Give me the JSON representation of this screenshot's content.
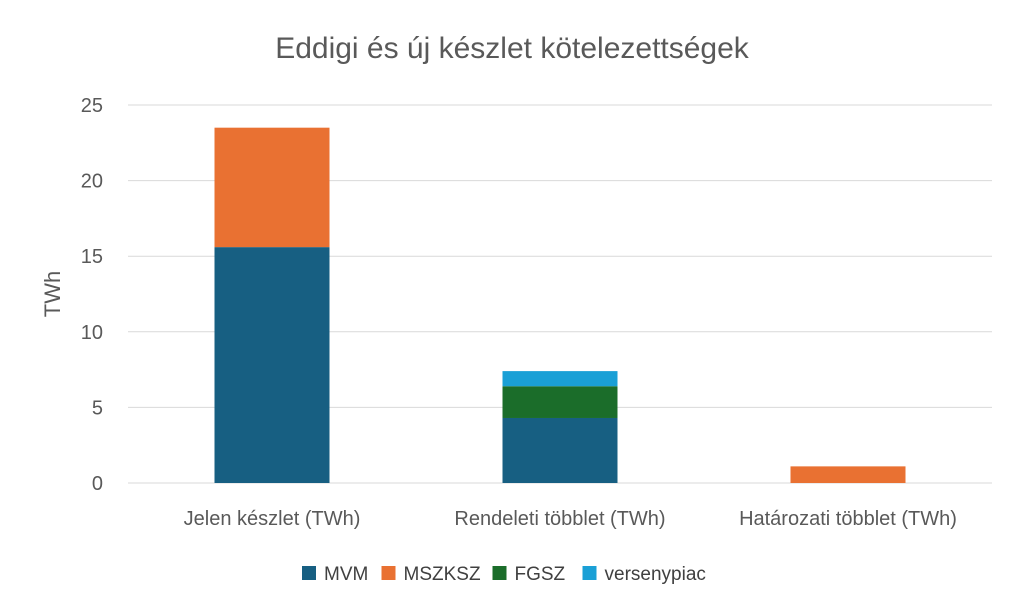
{
  "chart_data": {
    "type": "bar",
    "stacked": true,
    "title": "Eddigi és új készlet kötelezettségek",
    "xlabel": "",
    "ylabel": "TWh",
    "ylim": [
      0,
      25
    ],
    "yticks": [
      0,
      5,
      10,
      15,
      20,
      25
    ],
    "grid": true,
    "legend_position": "bottom",
    "categories": [
      "Jelen készlet (TWh)",
      "Rendeleti többlet (TWh)",
      "Határozati többlet (TWh)"
    ],
    "series": [
      {
        "name": "MVM",
        "color": "#175f82",
        "values": [
          15.6,
          4.3,
          0
        ]
      },
      {
        "name": "MSZKSZ",
        "color": "#e97132",
        "values": [
          7.9,
          0,
          1.1
        ]
      },
      {
        "name": "FGSZ",
        "color": "#1b6d2a",
        "values": [
          0,
          2.1,
          0
        ]
      },
      {
        "name": "versenypiac",
        "color": "#1aa0d6",
        "values": [
          0,
          1.0,
          0
        ]
      }
    ]
  }
}
